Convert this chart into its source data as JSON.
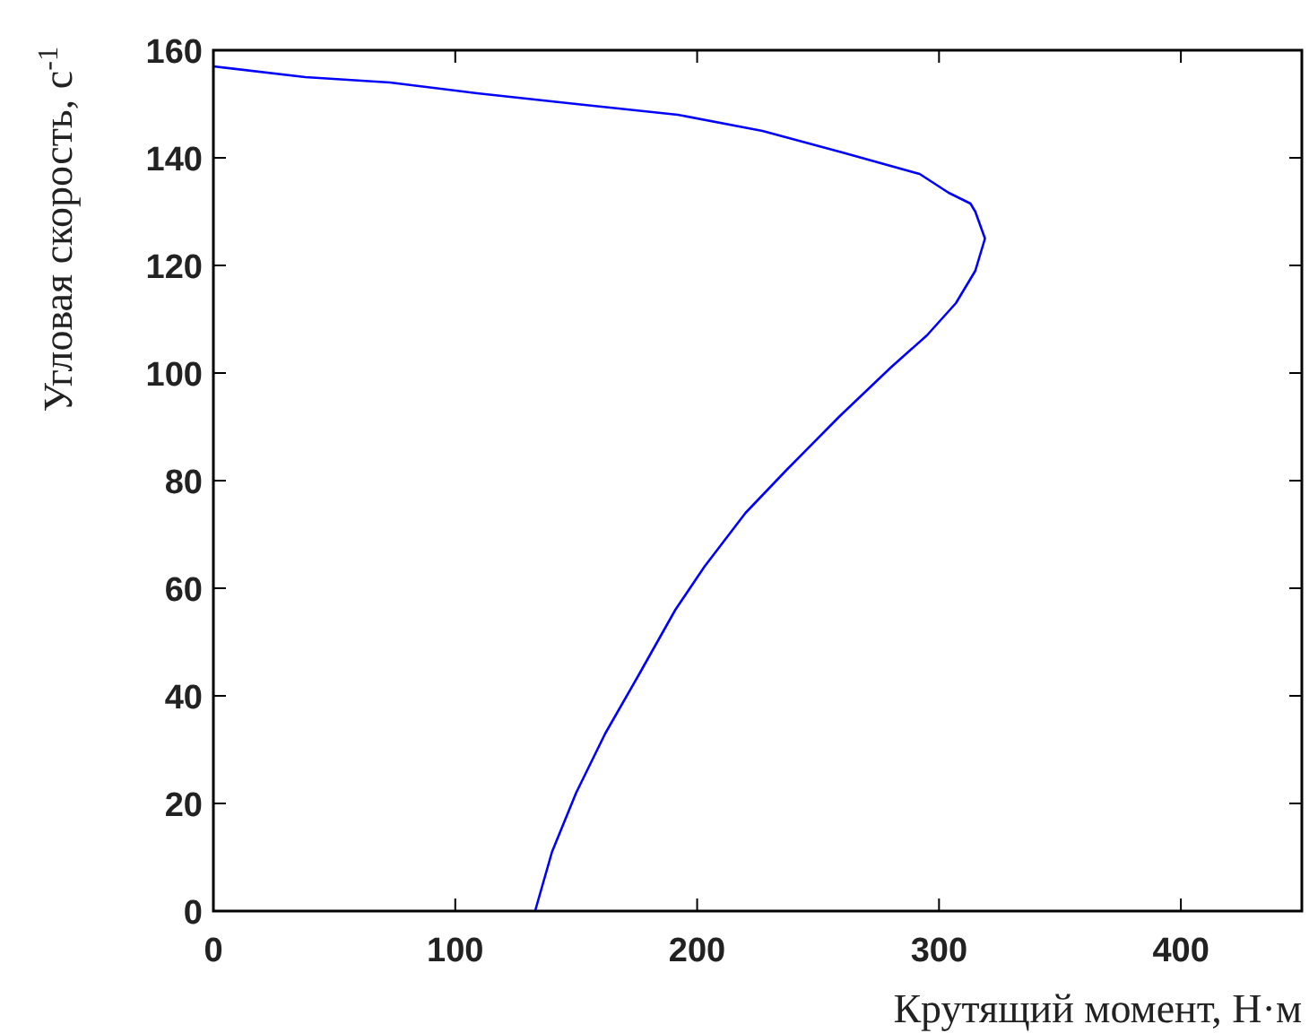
{
  "chart_data": {
    "type": "line",
    "xlabel": "Крутящий момент, Н·м",
    "ylabel": "Угловая скорость, c$^{-1}$",
    "xlim": [
      0,
      450
    ],
    "ylim": [
      0,
      160
    ],
    "xticks": [
      0,
      100,
      200,
      300,
      400
    ],
    "yticks": [
      0,
      20,
      40,
      60,
      80,
      100,
      120,
      140,
      160
    ],
    "grid": false,
    "series": [
      {
        "color": "#0000ff",
        "x": [
          133,
          140,
          150,
          162,
          176,
          191,
          203,
          220,
          237,
          259,
          280,
          295,
          307,
          315,
          319,
          315,
          313,
          304,
          292,
          260,
          227,
          192,
          150,
          109,
          73,
          38,
          0
        ],
        "values": [
          0,
          11,
          22,
          33,
          44,
          56,
          64,
          74,
          82,
          92,
          101,
          107,
          113,
          119,
          125,
          130,
          131.5,
          133.5,
          137,
          141,
          145,
          148,
          150,
          152,
          154,
          155,
          157
        ]
      }
    ]
  }
}
